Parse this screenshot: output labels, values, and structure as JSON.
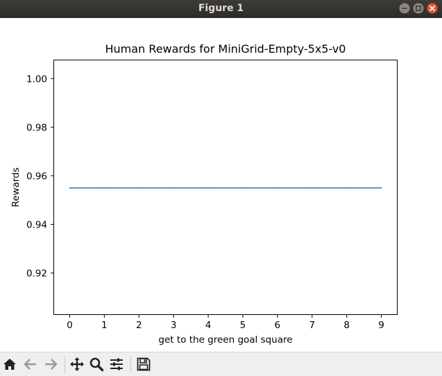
{
  "window": {
    "title": "Figure 1",
    "controls": [
      "minimize-icon",
      "maximize-icon",
      "close-icon"
    ]
  },
  "colors": {
    "titlebar": "#2f2e2b",
    "close_button": "#e8532d",
    "line": "#1f77b4",
    "toolbar_bg": "#f0efed"
  },
  "chart_data": {
    "type": "line",
    "title": "Human Rewards for MiniGrid-Empty-5x5-v0",
    "xlabel": "get to the green goal square",
    "ylabel": "Rewards",
    "x": [
      0,
      1,
      2,
      3,
      4,
      5,
      6,
      7,
      8,
      9
    ],
    "series": [
      {
        "values": [
          0.955,
          0.955,
          0.955,
          0.955,
          0.955,
          0.955,
          0.955,
          0.955,
          0.955,
          0.955
        ]
      }
    ],
    "xlim": [
      -0.45,
      9.45
    ],
    "ylim": [
      0.903,
      1.0075
    ],
    "xticks": [
      "0",
      "1",
      "2",
      "3",
      "4",
      "5",
      "6",
      "7",
      "8",
      "9"
    ],
    "yticks": [
      "0.92",
      "0.94",
      "0.96",
      "0.98",
      "1.00"
    ],
    "grid": false
  },
  "toolbar": {
    "buttons": [
      "home-icon",
      "back-icon",
      "forward-icon",
      "pan-icon",
      "zoom-icon",
      "configure-subplots-icon",
      "save-icon"
    ]
  }
}
